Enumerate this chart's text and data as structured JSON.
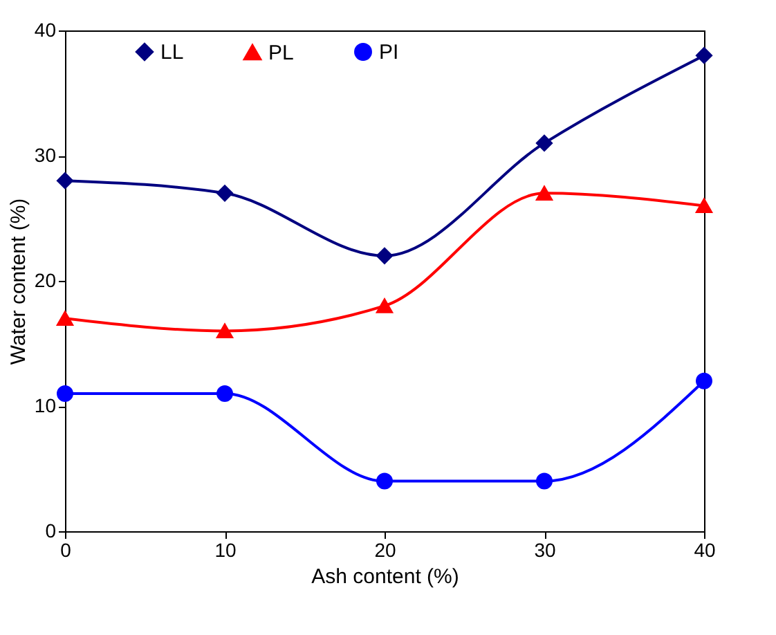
{
  "chart_data": {
    "type": "line",
    "xlabel": "Ash content (%)",
    "ylabel": "Water content (%)",
    "x": [
      0,
      10,
      20,
      30,
      40
    ],
    "series": [
      {
        "name": "LL",
        "color": "#000080",
        "marker": "diamond",
        "values": [
          28,
          27,
          22,
          31,
          38
        ]
      },
      {
        "name": "PL",
        "color": "#ff0000",
        "marker": "triangle",
        "values": [
          17,
          16,
          18,
          27,
          26
        ]
      },
      {
        "name": "PI",
        "color": "#0000ff",
        "marker": "circle",
        "values": [
          11,
          11,
          4,
          4,
          12
        ]
      }
    ],
    "xlim": [
      0,
      40
    ],
    "xticks": [
      0,
      10,
      20,
      30,
      40
    ],
    "ylim": [
      0,
      40
    ],
    "yticks": [
      0,
      10,
      20,
      30,
      40
    ],
    "grid": false,
    "legend": "top",
    "line_style": "solid"
  }
}
